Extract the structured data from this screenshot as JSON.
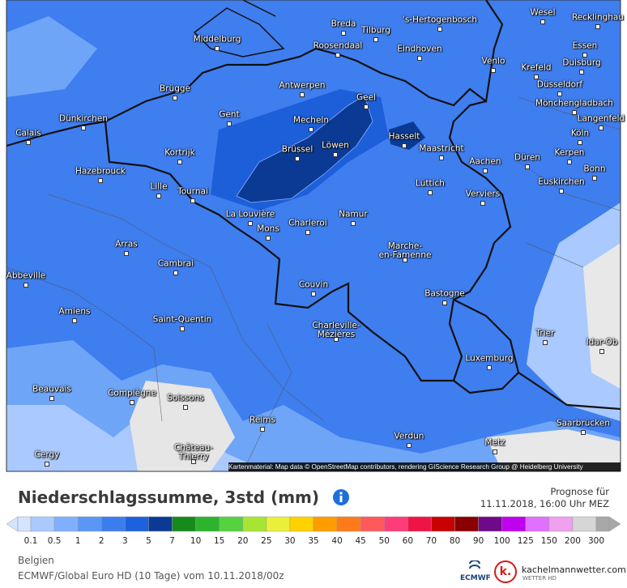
{
  "map": {
    "attribution": "Kartenmaterial: Map data © OpenStreetMap contributors, rendering GIScience Research Group @ Heidelberg University",
    "cities": [
      "Wesel",
      "Recklinghau",
      "Breda",
      "Tilburg",
      "'s-Hertogenbosch",
      "Middelburg",
      "Roosendaal",
      "Eindhoven",
      "Essen",
      "Venlo",
      "Krefeld",
      "Duisburg",
      "Antwerpen",
      "Düsseldorf",
      "Brügge",
      "Geel",
      "Mönchengladbach",
      "Gent",
      "Mecheln",
      "Dünkirchen",
      "Langenfeld",
      "Calais",
      "Hasselt",
      "Köln",
      "Brüssel",
      "Löwen",
      "Maastricht",
      "Düren",
      "Kerpen",
      "Kortrijk",
      "Aachen",
      "Hazebrouck",
      "Bonn",
      "Lille",
      "Tournai",
      "Lüttich",
      "Verviers",
      "Euskirchen",
      "La Louvière",
      "Namur",
      "Charleroi",
      "Mons",
      "Marche-\nen-Famenne",
      "Arras",
      "Cambrai",
      "Abbeville",
      "Couvin",
      "Bastogne",
      "Amiens",
      "Saint-Quentin",
      "Charleville-\nMézières",
      "Trier",
      "Idar-Ob",
      "Luxemburg",
      "Beauvais",
      "Compiègne",
      "Soissons",
      "Saarbrücken",
      "Reims",
      "Verdun",
      "Metz",
      "Château-\nThierry",
      "Cergy"
    ]
  },
  "legend": {
    "title": "Niederschlagssumme, 3std (mm)",
    "ticks": [
      0.1,
      0.5,
      1,
      2,
      3,
      5,
      7,
      10,
      15,
      20,
      25,
      30,
      35,
      40,
      45,
      50,
      60,
      70,
      80,
      90,
      100,
      125,
      150,
      200,
      300
    ],
    "colors": [
      "#d4e4ff",
      "#a9c9ff",
      "#7fb0ff",
      "#5a96f5",
      "#3c7ded",
      "#1c62df",
      "#0b3a94",
      "#178a1c",
      "#2db42d",
      "#55d23f",
      "#a6e632",
      "#eaf03a",
      "#ffd200",
      "#ff9d00",
      "#ff7a1a",
      "#ff5a5a",
      "#ff3c7a",
      "#f01446",
      "#c80000",
      "#8a0000",
      "#6e0a8a",
      "#c000f0",
      "#e070ff",
      "#efa0ef",
      "#d6d6d6",
      "#a8a8a8"
    ]
  },
  "forecast": {
    "label": "Prognose für",
    "datetime": "11.11.2018, 16:00 Uhr MEZ"
  },
  "footer": {
    "region": "Belgien",
    "model": "ECMWF/Global Euro HD (10 Tage) vom 10.11.2018/00z"
  },
  "logos": {
    "ecmwf": "ECMWF",
    "mark": "k.",
    "site": "kachelmannwetter.com",
    "site_sub": "WETTER HD"
  }
}
